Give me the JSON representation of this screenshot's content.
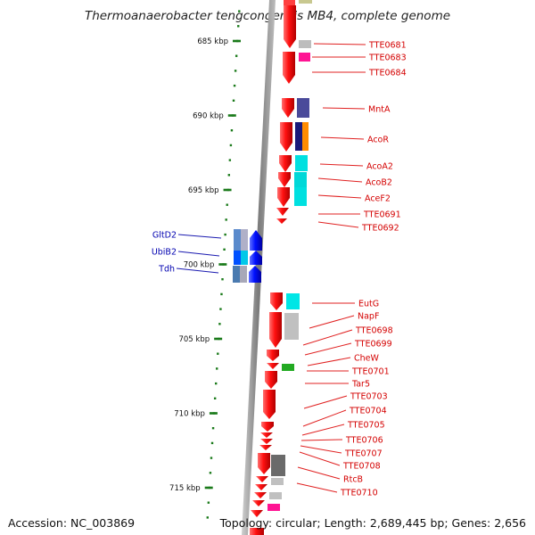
{
  "header": {
    "title": "Thermoanaerobacter tengcongensis MB4, complete genome"
  },
  "footer": {
    "accession": "Accession: NC_003869",
    "info": "Topology: circular; Length: 2,689,445 bp; Genes: 2,656"
  },
  "ticks": [
    {
      "label": "685 kbp",
      "kbp": 685
    },
    {
      "label": "690 kbp",
      "kbp": 690
    },
    {
      "label": "695 kbp",
      "kbp": 695
    },
    {
      "label": "700 kbp",
      "kbp": 700
    },
    {
      "label": "705 kbp",
      "kbp": 705
    },
    {
      "label": "710 kbp",
      "kbp": 710
    },
    {
      "label": "715 kbp",
      "kbp": 715
    }
  ],
  "genes_right": [
    "TTE0681",
    "TTE0683",
    "TTE0684",
    "MntA",
    "AcoR",
    "AcoA2",
    "AcoB2",
    "AceF2",
    "TTE0691",
    "TTE0692",
    "EutG",
    "NapF",
    "TTE0698",
    "TTE0699",
    "CheW",
    "TTE0701",
    "Tar5",
    "TTE0703",
    "TTE0704",
    "TTE0705",
    "TTE0706",
    "TTE0707",
    "TTE0708",
    "RtcB",
    "TTE0710"
  ],
  "genes_left": [
    "GltD2",
    "UbiB2",
    "Tdh"
  ],
  "colors": {
    "forward": "#e00000",
    "reverse": "#0010ff",
    "backbone": "#888888",
    "tick": "#1a7a1a",
    "label_right": "#d40000",
    "label_left": "#0000b0"
  }
}
